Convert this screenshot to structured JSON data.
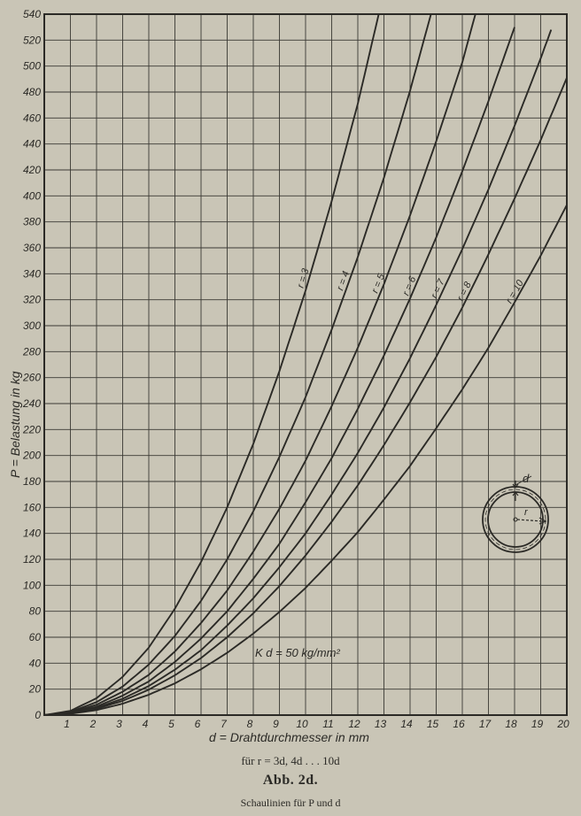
{
  "chart_data": {
    "type": "line",
    "xlabel": "d = Drahtdurchmesser in mm",
    "ylabel": "P = Belastung in kg",
    "xlim": [
      0,
      20
    ],
    "ylim": [
      0,
      540
    ],
    "x_ticks": [
      1,
      2,
      3,
      4,
      5,
      6,
      7,
      8,
      9,
      10,
      11,
      12,
      13,
      14,
      15,
      16,
      17,
      18,
      19,
      20
    ],
    "y_ticks": [
      0,
      20,
      40,
      60,
      80,
      100,
      120,
      140,
      160,
      180,
      200,
      220,
      240,
      260,
      280,
      300,
      320,
      340,
      360,
      380,
      400,
      420,
      440,
      460,
      480,
      500,
      520,
      540
    ],
    "grid": true,
    "series": [
      {
        "name": "r = 3",
        "x": [
          0,
          1,
          2,
          3,
          4,
          5,
          6,
          7,
          8,
          9,
          10,
          11,
          12,
          12.8
        ],
        "y": [
          0,
          3.3,
          13,
          29.5,
          52,
          82,
          118,
          160,
          209,
          265,
          327,
          396,
          471,
          540
        ]
      },
      {
        "name": "r = 4",
        "x": [
          0,
          1,
          2,
          3,
          4,
          5,
          6,
          7,
          8,
          9,
          10,
          11,
          12,
          13,
          14,
          14.8
        ],
        "y": [
          0,
          2.5,
          10,
          22,
          39,
          61,
          88,
          120,
          157,
          199,
          245,
          297,
          353,
          414,
          481,
          540
        ]
      },
      {
        "name": "r = 5",
        "x": [
          0,
          1,
          2,
          3,
          4,
          5,
          6,
          7,
          8,
          9,
          10,
          11,
          12,
          13,
          14,
          15,
          16,
          16.5
        ],
        "y": [
          0,
          2,
          8,
          18,
          31,
          49,
          71,
          96,
          126,
          159,
          196,
          238,
          283,
          332,
          385,
          442,
          503,
          540
        ]
      },
      {
        "name": "r = 6",
        "x": [
          0,
          1,
          2,
          3,
          4,
          5,
          6,
          7,
          8,
          9,
          10,
          11,
          12,
          13,
          14,
          15,
          16,
          17,
          18
        ],
        "y": [
          0,
          1.6,
          6.5,
          15,
          26,
          41,
          59,
          80,
          105,
          132,
          164,
          198,
          236,
          277,
          321,
          368,
          419,
          473,
          530
        ]
      },
      {
        "name": "r = 7",
        "x": [
          0,
          1,
          2,
          3,
          4,
          5,
          6,
          7,
          8,
          9,
          10,
          11,
          12,
          13,
          14,
          15,
          16,
          17,
          18,
          19,
          19.4
        ],
        "y": [
          0,
          1.4,
          5.6,
          12.6,
          22.4,
          35,
          50,
          69,
          90,
          114,
          140,
          170,
          202,
          237,
          275,
          316,
          359,
          405,
          454,
          506,
          528
        ]
      },
      {
        "name": "r = 8",
        "x": [
          0,
          1,
          2,
          3,
          4,
          5,
          6,
          7,
          8,
          9,
          10,
          11,
          12,
          13,
          14,
          15,
          16,
          17,
          18,
          19,
          20
        ],
        "y": [
          0,
          1.2,
          4.9,
          11,
          19.6,
          30.7,
          44,
          60,
          78.5,
          99.4,
          123,
          149,
          177,
          208,
          241,
          276,
          314,
          355,
          398,
          443,
          491
        ]
      },
      {
        "name": "r = 10",
        "x": [
          0,
          1,
          2,
          3,
          4,
          5,
          6,
          7,
          8,
          9,
          10,
          11,
          12,
          13,
          14,
          15,
          16,
          17,
          18,
          19,
          20
        ],
        "y": [
          0,
          1,
          3.9,
          8.8,
          15.7,
          24.5,
          35.3,
          48,
          62.8,
          79.5,
          98,
          119,
          141,
          166,
          192,
          221,
          251,
          283,
          318,
          354,
          393
        ]
      }
    ],
    "annotations": [
      "K d = 50 kg/mm²"
    ],
    "inset_labels": {
      "wire": "d",
      "radius": "r"
    }
  },
  "captions": {
    "sub": "für r = 3d, 4d . . . 10d",
    "figure": "Abb. 2d.",
    "description": "Schaulinien für P und d"
  },
  "colors": {
    "paper": "#c9c5b6",
    "ink": "#2b2a26"
  }
}
